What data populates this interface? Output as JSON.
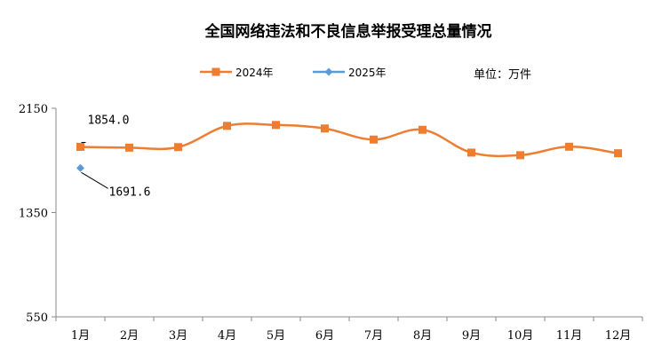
{
  "colors": {
    "series_2024": "#ED7D31",
    "series_2025": "#5B9BD5",
    "axis": "#888888"
  },
  "chart_data": {
    "type": "line",
    "title": "全国网络违法和不良信息举报受理总量情况",
    "unit": "单位：万件",
    "xlabel": "",
    "ylabel": "",
    "ylim": [
      550,
      2150
    ],
    "yticks": [
      "2150",
      "1350",
      "550"
    ],
    "grid": false,
    "legend": "top-center",
    "categories": [
      "1月",
      "2月",
      "3月",
      "4月",
      "5月",
      "6月",
      "7月",
      "8月",
      "9月",
      "10月",
      "11月",
      "12月"
    ],
    "series": [
      {
        "name": "2024年",
        "marker": "square",
        "values": [
          1854.0,
          1848,
          1852,
          2015,
          2022,
          1995,
          1910,
          1985,
          1810,
          1790,
          1855,
          1805
        ]
      },
      {
        "name": "2025年",
        "marker": "diamond",
        "values": [
          1691.6,
          null,
          null,
          null,
          null,
          null,
          null,
          null,
          null,
          null,
          null,
          null
        ]
      }
    ],
    "annotations": [
      {
        "series": 0,
        "index": 0,
        "text": "1854.0"
      },
      {
        "series": 1,
        "index": 0,
        "text": "1691.6"
      }
    ]
  }
}
